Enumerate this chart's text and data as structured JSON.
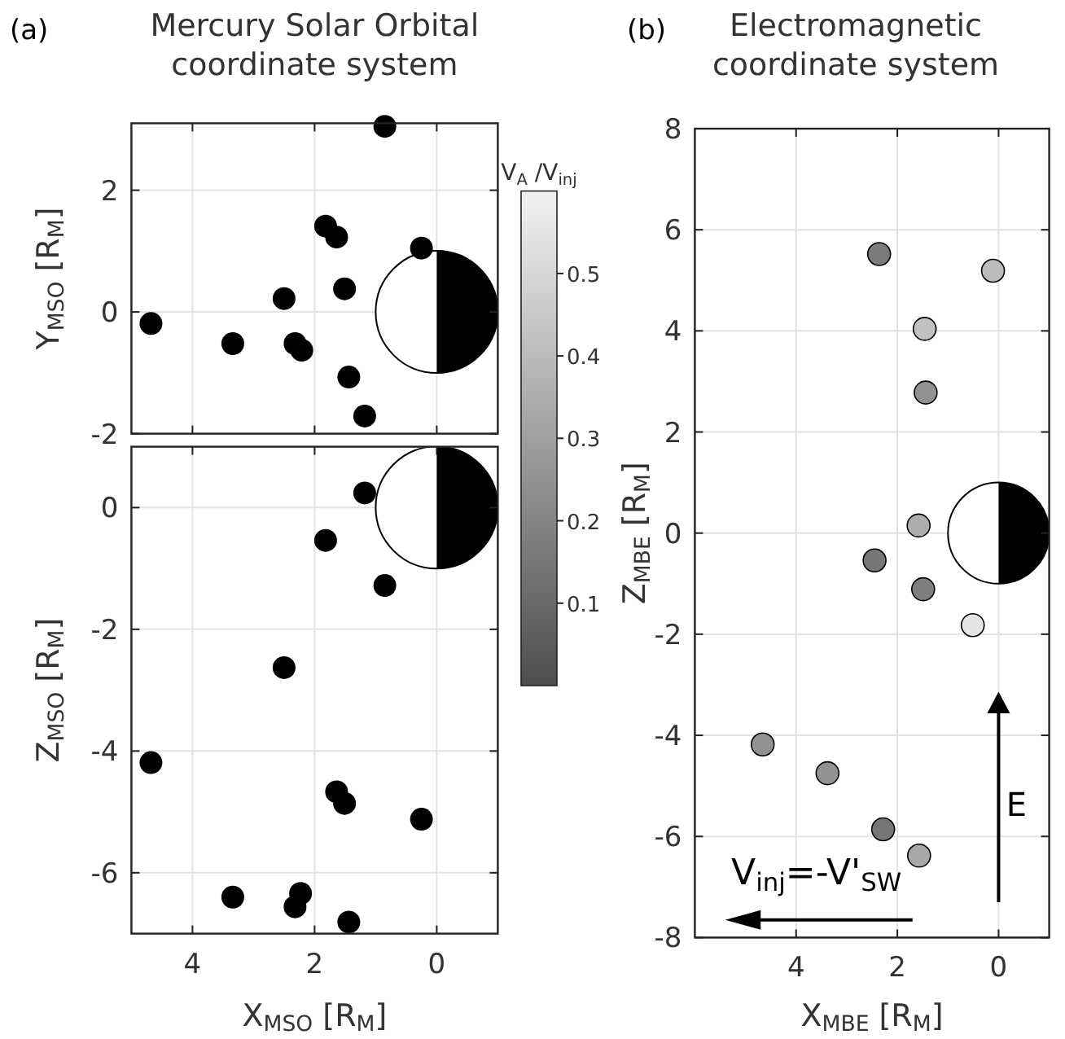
{
  "chart_data": [
    {
      "type": "scatter",
      "title": "Mercury Solar Orbital coordinate system",
      "ylabel": "Y$_{MSO}$ [R$_{M}$]",
      "annotations": [
        "(a)"
      ],
      "xlim": [
        5,
        -1
      ],
      "ylim": [
        -2,
        3.1
      ],
      "xticks": [
        4,
        2,
        0
      ],
      "yticks": [
        -2,
        0,
        2
      ],
      "tick_labels": "y",
      "grid": true,
      "marker": "circle",
      "series": [
        {
          "color": "#000000",
          "x": [
            0.85,
            1.82,
            1.64,
            0.25,
            1.51,
            2.5,
            4.68,
            3.34,
            2.32,
            2.21,
            1.44,
            1.18
          ],
          "values": [
            3.05,
            1.41,
            1.23,
            1.05,
            0.38,
            0.22,
            -0.19,
            -0.52,
            -0.52,
            -0.63,
            -1.07,
            -1.71
          ]
        }
      ]
    },
    {
      "type": "scatter",
      "xlabel": "X$_{MSO}$ [R$_{M}$]",
      "ylabel": "Z$_{MSO}$ [R$_{M}$]",
      "xlim": [
        5,
        -1
      ],
      "ylim": [
        -7,
        1
      ],
      "xticks": [
        4,
        2,
        0
      ],
      "yticks": [
        -6,
        -4,
        -2,
        0
      ],
      "grid": true,
      "marker": "circle",
      "series": [
        {
          "color": "#000000",
          "x": [
            1.18,
            1.82,
            0.85,
            2.5,
            4.68,
            1.64,
            1.51,
            0.25,
            3.34,
            2.23,
            2.32,
            1.44
          ],
          "values": [
            0.24,
            -0.54,
            -1.28,
            -2.63,
            -4.19,
            -4.67,
            -4.86,
            -5.12,
            -6.4,
            -6.34,
            -6.56,
            -6.81
          ]
        }
      ]
    },
    {
      "type": "scatter",
      "title": "Electromagnetic coordinate system",
      "xlabel": "X$_{MBE}$ [R$_{M}$]",
      "ylabel": "Z$_{MBE}$ [R$_{M}$]",
      "clabel": "V$_{A}$ /V$_{inj}$",
      "annotations": [
        "(b)",
        "E",
        "V$_{inj}$=-V'$_{SW}$"
      ],
      "xlim": [
        6,
        -1
      ],
      "ylim": [
        -8,
        8
      ],
      "xticks": [
        4,
        2,
        0
      ],
      "yticks": [
        -8,
        -6,
        -4,
        -2,
        0,
        2,
        4,
        6,
        8
      ],
      "clim": [
        0,
        0.6
      ],
      "cticks": [
        0.1,
        0.2,
        0.3,
        0.4,
        0.5
      ],
      "grid": true,
      "marker": "circle",
      "series": [
        {
          "x": [
            2.36,
            0.11,
            1.46,
            1.44,
            1.58,
            2.45,
            1.49,
            0.51,
            4.66,
            3.38,
            2.28,
            1.57
          ],
          "values": [
            5.52,
            5.19,
            4.04,
            2.78,
            0.15,
            -0.54,
            -1.11,
            -1.82,
            -4.18,
            -4.75,
            -5.86,
            -6.38
          ],
          "cvalues": [
            0.17,
            0.4,
            0.42,
            0.25,
            0.35,
            0.15,
            0.18,
            0.55,
            0.25,
            0.25,
            0.15,
            0.33
          ]
        }
      ]
    }
  ]
}
